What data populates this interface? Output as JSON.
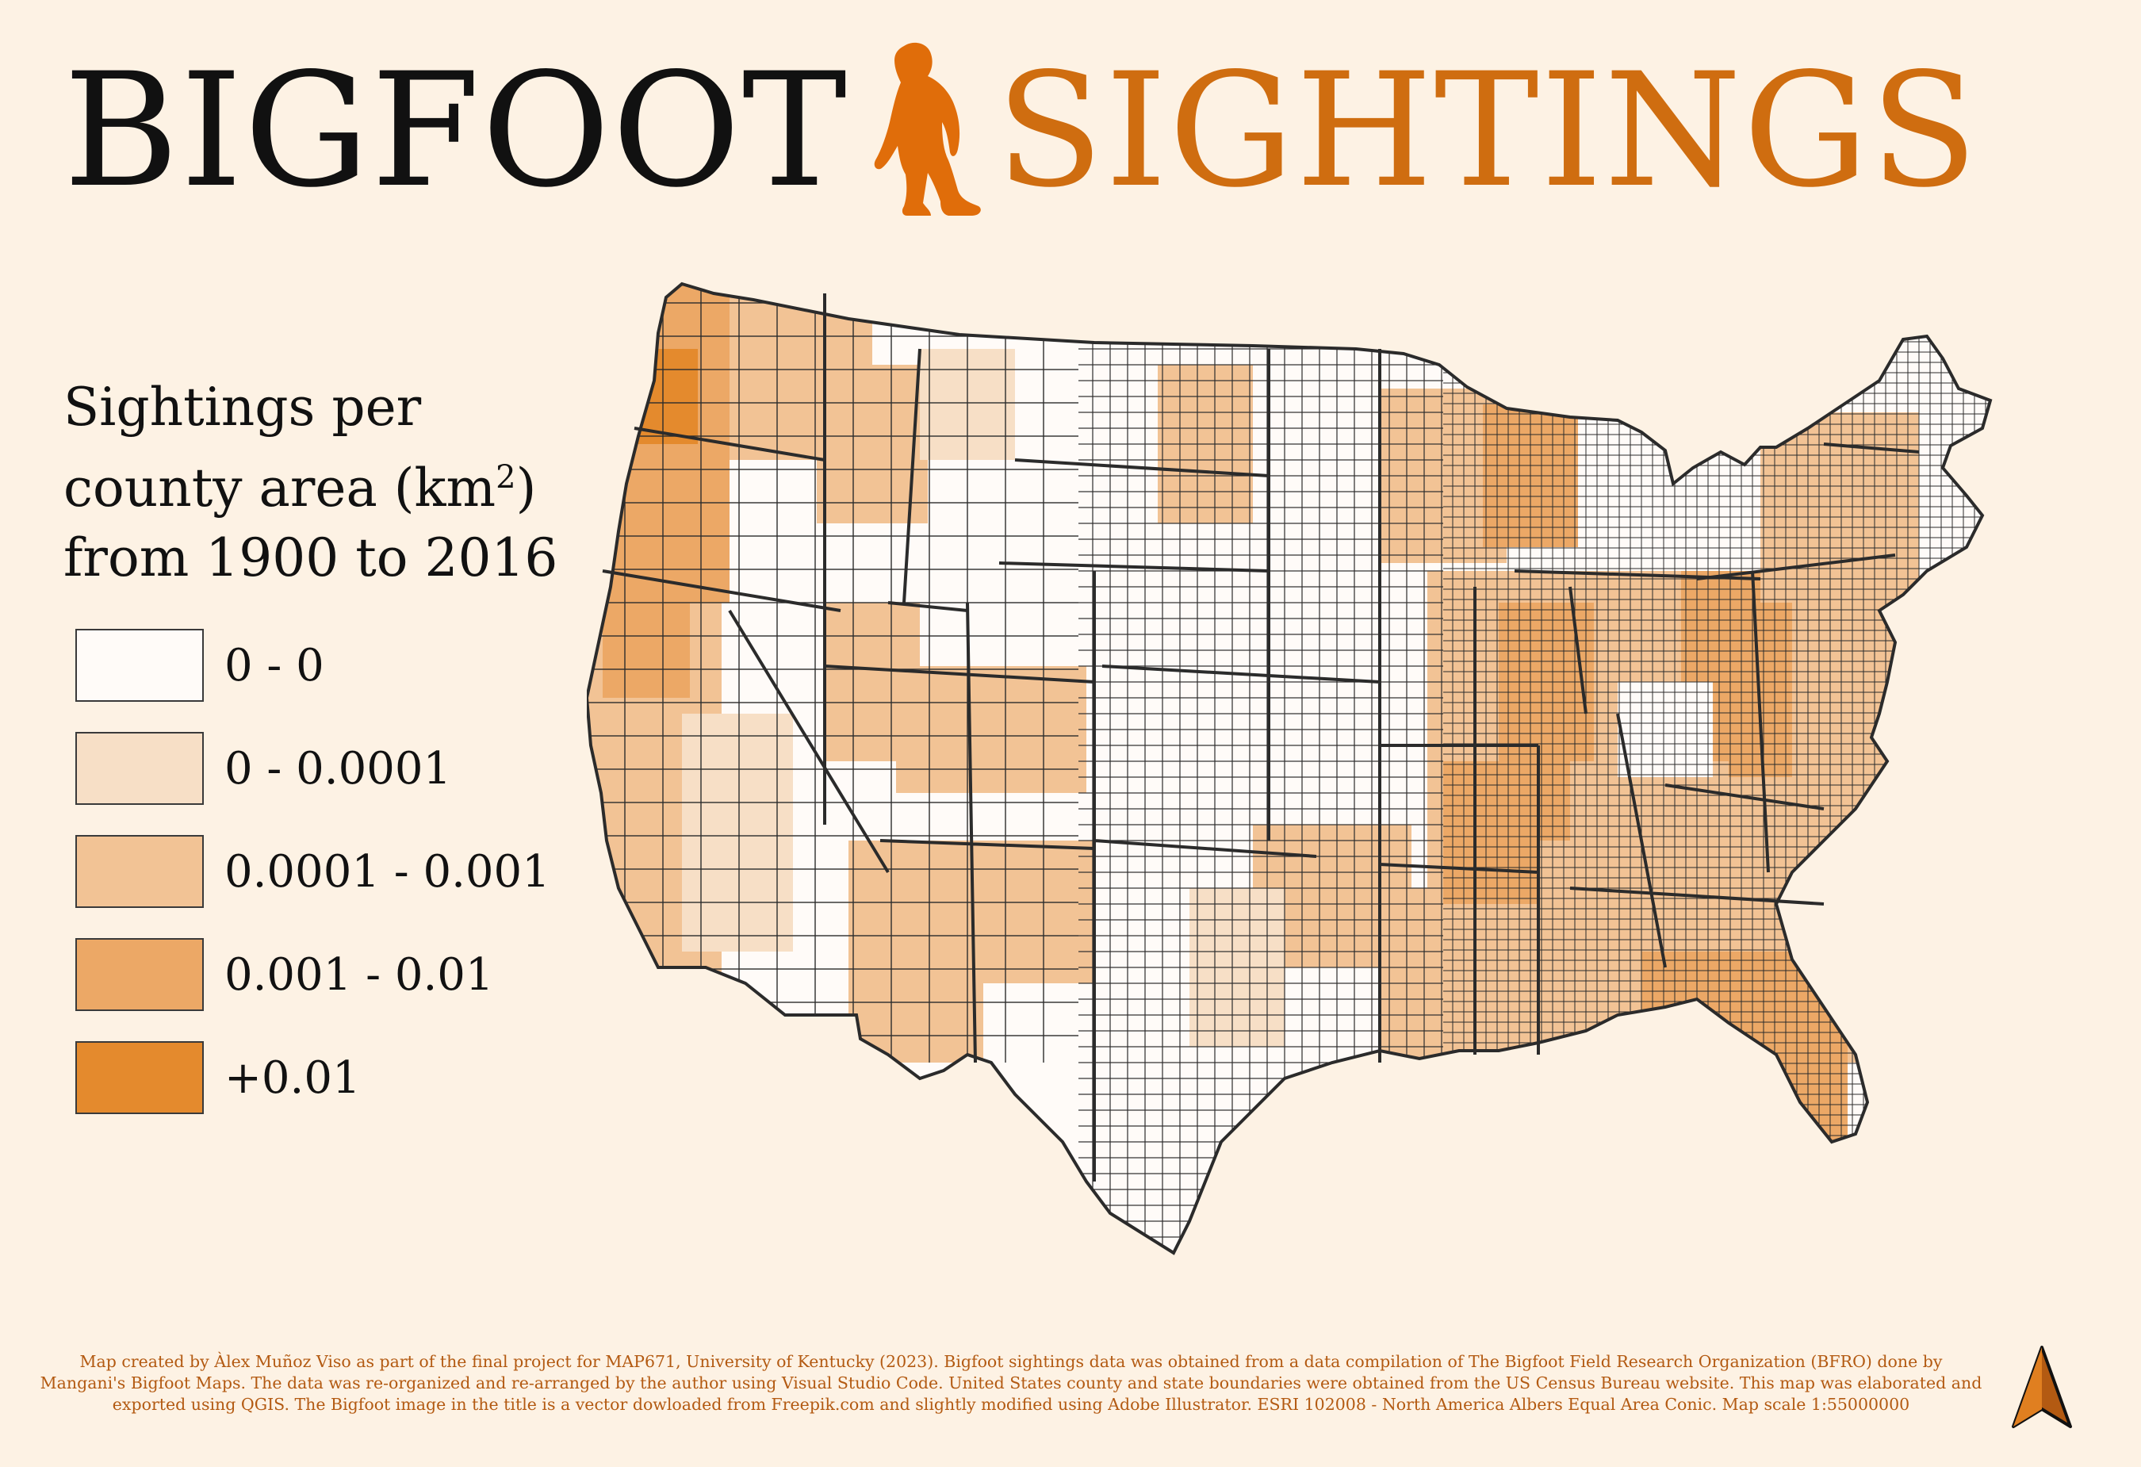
{
  "title": {
    "left": "BIGFOOT",
    "right": "SIGHTINGS"
  },
  "colors": {
    "background": "#fdf2e4",
    "accent": "#cf6d10",
    "class_colors": [
      "#fffbf8",
      "#f7dfc6",
      "#f2c395",
      "#eca866",
      "#e48a2d"
    ],
    "state_border": "#2b2b2b"
  },
  "icons": {
    "title_icon": "bigfoot-silhouette-icon",
    "north_icon": "north-arrow-icon"
  },
  "legend": {
    "title_line1": "Sightings per",
    "title_line2_pre": "county area (km",
    "title_line2_sup": "2",
    "title_line2_post": ")",
    "title_line3": "from 1900 to 2016",
    "classes": [
      {
        "label": "0 - 0",
        "color": "#fffbf8"
      },
      {
        "label": "0 - 0.0001",
        "color": "#f7dfc6"
      },
      {
        "label": "0.0001 - 0.001",
        "color": "#f2c395"
      },
      {
        "label": "0.001 - 0.01",
        "color": "#eca866"
      },
      {
        "label": "+0.01",
        "color": "#e48a2d"
      }
    ]
  },
  "footer": {
    "line1": "Map created by Àlex Muñoz Viso as part of the final project for MAP671, University of Kentucky (2023). Bigfoot sightings data was obtained from a data compilation of The Bigfoot Field Research Organization (BFRO) done by",
    "line2": "Mangani's Bigfoot Maps. The data was re-organized and re-arranged by the author using Visual Studio Code. United States county and state boundaries were obtained from the US Census Bureau website. This map was elaborated and",
    "line3": "exported using QGIS. The Bigfoot image in the title is a vector dowloaded from Freepik.com and slightly modified using Adobe Illustrator. ESRI 102008 - North America Albers Equal Area Conic. Map scale 1:55000000"
  }
}
